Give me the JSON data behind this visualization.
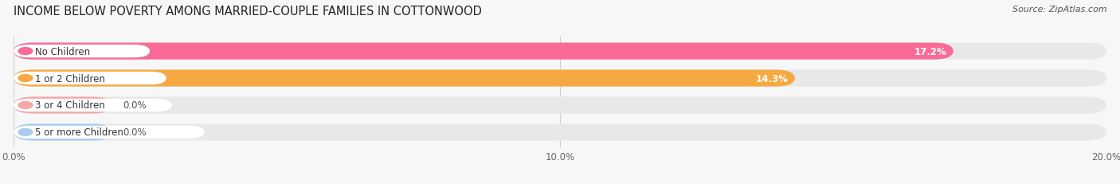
{
  "title": "INCOME BELOW POVERTY AMONG MARRIED-COUPLE FAMILIES IN COTTONWOOD",
  "source": "Source: ZipAtlas.com",
  "categories": [
    "No Children",
    "1 or 2 Children",
    "3 or 4 Children",
    "5 or more Children"
  ],
  "values": [
    17.2,
    14.3,
    0.0,
    0.0
  ],
  "bar_colors": [
    "#F96A97",
    "#F5A940",
    "#F4A8A8",
    "#AACCEE"
  ],
  "background_color": "#f7f7f7",
  "bar_bg_color": "#e8e8e8",
  "xlim": [
    0,
    20.0
  ],
  "xticks": [
    0.0,
    10.0,
    20.0
  ],
  "xticklabels": [
    "0.0%",
    "10.0%",
    "20.0%"
  ],
  "value_labels": [
    "17.2%",
    "14.3%",
    "0.0%",
    "0.0%"
  ],
  "title_fontsize": 10.5,
  "bar_height": 0.62,
  "bar_gap": 1.0,
  "figsize": [
    14.06,
    2.32
  ]
}
